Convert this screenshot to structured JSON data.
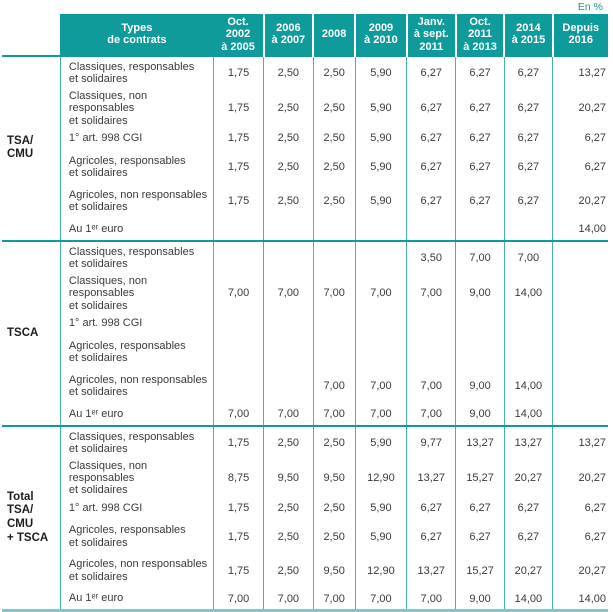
{
  "unit_label": "En %",
  "colors": {
    "accent_teal": "#0f9b9b",
    "grid_line_teal": "#45b2b2",
    "bottom_rule_teal": "#7fc8c8",
    "body_text": "#3a3a38"
  },
  "chart_data": {
    "type": "table",
    "title": "",
    "unit": "En %",
    "columns": [
      "Types\nde contrats",
      "Oct.\n2002\nà 2005",
      "2006\nà 2007",
      "2008",
      "2009\nà 2010",
      "Janv.\nà sept.\n2011",
      "Oct.\n2011\nà 2013",
      "2014\nà 2015",
      "Depuis\n2016"
    ],
    "sections": [
      {
        "group": "TSA/\nCMU",
        "rows": [
          {
            "label": "Classiques, responsables\net solidaires",
            "values": [
              "1,75",
              "2,50",
              "2,50",
              "5,90",
              "6,27",
              "6,27",
              "6,27",
              "13,27"
            ]
          },
          {
            "label": "Classiques, non responsables\net solidaires",
            "values": [
              "1,75",
              "2,50",
              "2,50",
              "5,90",
              "6,27",
              "6,27",
              "6,27",
              "20,27"
            ]
          },
          {
            "label": "1° art. 998 CGI",
            "values": [
              "1,75",
              "2,50",
              "2,50",
              "5,90",
              "6,27",
              "6,27",
              "6,27",
              "6,27"
            ]
          },
          {
            "label": "Agricoles, responsables\net solidaires",
            "values": [
              "1,75",
              "2,50",
              "2,50",
              "5,90",
              "6,27",
              "6,27",
              "6,27",
              "6,27"
            ]
          },
          {
            "label": "Agricoles, non responsables\net solidaires",
            "values": [
              "1,75",
              "2,50",
              "2,50",
              "5,90",
              "6,27",
              "6,27",
              "6,27",
              "20,27"
            ]
          },
          {
            "label": "Au 1ᵉʳ euro",
            "values": [
              "",
              "",
              "",
              "",
              "",
              "",
              "",
              "14,00"
            ]
          }
        ]
      },
      {
        "group": "TSCA",
        "rows": [
          {
            "label": "Classiques, responsables\net solidaires",
            "values": [
              "",
              "",
              "",
              "",
              "3,50",
              "7,00",
              "7,00",
              ""
            ]
          },
          {
            "label": "Classiques, non responsables\net solidaires",
            "values": [
              "7,00",
              "7,00",
              "7,00",
              "7,00",
              "7,00",
              "9,00",
              "14,00",
              ""
            ]
          },
          {
            "label": "1° art. 998 CGI",
            "values": [
              "",
              "",
              "",
              "",
              "",
              "",
              "",
              ""
            ]
          },
          {
            "label": "Agricoles, responsables\net solidaires",
            "values": [
              "",
              "",
              "",
              "",
              "",
              "",
              "",
              ""
            ]
          },
          {
            "label": "Agricoles, non responsables\net solidaires",
            "values": [
              "",
              "",
              "7,00",
              "7,00",
              "7,00",
              "9,00",
              "14,00",
              ""
            ]
          },
          {
            "label": "Au 1ᵉʳ euro",
            "values": [
              "7,00",
              "7,00",
              "7,00",
              "7,00",
              "7,00",
              "9,00",
              "14,00",
              ""
            ]
          }
        ]
      },
      {
        "group": "Total\nTSA/\nCMU\n+ TSCA",
        "rows": [
          {
            "label": "Classiques, responsables\net solidaires",
            "values": [
              "1,75",
              "2,50",
              "2,50",
              "5,90",
              "9,77",
              "13,27",
              "13,27",
              "13,27"
            ]
          },
          {
            "label": "Classiques, non responsables\net solidaires",
            "values": [
              "8,75",
              "9,50",
              "9,50",
              "12,90",
              "13,27",
              "15,27",
              "20,27",
              "20,27"
            ]
          },
          {
            "label": "1° art. 998 CGI",
            "values": [
              "1,75",
              "2,50",
              "2,50",
              "5,90",
              "6,27",
              "6,27",
              "6,27",
              "6,27"
            ]
          },
          {
            "label": "Agricoles, responsables\net solidaires",
            "values": [
              "1,75",
              "2,50",
              "2,50",
              "5,90",
              "6,27",
              "6,27",
              "6,27",
              "6,27"
            ]
          },
          {
            "label": "Agricoles, non responsables\net solidaires",
            "values": [
              "1,75",
              "2,50",
              "9,50",
              "12,90",
              "13,27",
              "15,27",
              "20,27",
              "20,27"
            ]
          },
          {
            "label": "Au 1ᵉʳ euro",
            "values": [
              "7,00",
              "7,00",
              "7,00",
              "7,00",
              "7,00",
              "9,00",
              "14,00",
              "14,00"
            ]
          }
        ]
      }
    ]
  }
}
